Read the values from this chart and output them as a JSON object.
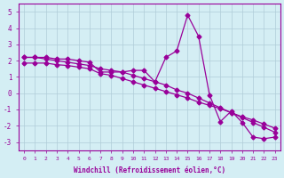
{
  "xlabel": "Windchill (Refroidissement éolien,°C)",
  "ylabel": "",
  "background_color": "#d4eef4",
  "grid_color": "#b0ccd8",
  "line_color": "#990099",
  "xlim": [
    -0.5,
    23.5
  ],
  "ylim": [
    -3.5,
    5.5
  ],
  "yticks": [
    -3,
    -2,
    -1,
    0,
    1,
    2,
    3,
    4,
    5
  ],
  "xticks": [
    0,
    1,
    2,
    3,
    4,
    5,
    6,
    7,
    8,
    9,
    10,
    11,
    12,
    13,
    14,
    15,
    16,
    17,
    18,
    19,
    20,
    21,
    22,
    23
  ],
  "line1_x": [
    0,
    1,
    2,
    3,
    4,
    5,
    6,
    7,
    8,
    9,
    10,
    11,
    12,
    13,
    14,
    15,
    16,
    17,
    18,
    19,
    20,
    21,
    22,
    23
  ],
  "line1_y": [
    2.2,
    2.2,
    2.2,
    2.1,
    2.1,
    2.0,
    1.9,
    1.3,
    1.3,
    1.3,
    1.4,
    1.4,
    0.7,
    2.2,
    2.6,
    4.8,
    3.5,
    -0.1,
    -1.75,
    -1.1,
    -1.8,
    -2.7,
    -2.8,
    -2.7
  ],
  "line2_x": [
    0,
    1,
    2,
    3,
    4,
    5,
    6,
    7,
    8,
    9,
    10,
    11,
    12,
    13,
    14,
    15,
    16,
    17,
    18,
    19,
    20,
    21,
    22,
    23
  ],
  "line2_y": [
    1.85,
    1.85,
    1.85,
    1.75,
    1.7,
    1.6,
    1.5,
    1.2,
    1.1,
    0.9,
    0.7,
    0.5,
    0.3,
    0.1,
    -0.1,
    -0.3,
    -0.55,
    -0.75,
    -0.95,
    -1.2,
    -1.45,
    -1.65,
    -1.9,
    -2.15
  ],
  "line3_x": [
    0,
    1,
    2,
    3,
    4,
    5,
    6,
    7,
    8,
    9,
    10,
    11,
    12,
    13,
    14,
    15,
    16,
    17,
    18,
    19,
    20,
    21,
    22,
    23
  ],
  "line3_y": [
    2.2,
    2.2,
    2.1,
    2.0,
    1.9,
    1.8,
    1.7,
    1.5,
    1.4,
    1.3,
    1.1,
    0.9,
    0.7,
    0.5,
    0.2,
    0.0,
    -0.3,
    -0.6,
    -0.9,
    -1.2,
    -1.5,
    -1.8,
    -2.1,
    -2.4
  ]
}
